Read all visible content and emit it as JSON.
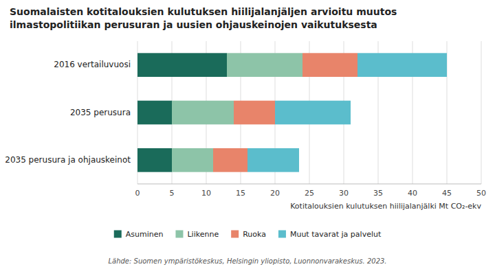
{
  "chart_data": {
    "type": "bar",
    "orientation": "horizontal",
    "stacked": true,
    "title": "Suomalaisten kotitalouksien kulutuksen hiilijalanjäljen arvioitu muutos",
    "subtitle": "ilmastopolitiikan perusuran ja uusien ohjauskeinojen vaikutuksesta",
    "categories": [
      "2016 vertailuvuosi",
      "2035 perusura",
      "2035 perusura ja ohjauskeinot"
    ],
    "series": [
      {
        "name": "Asuminen",
        "color": "#1a6b5a",
        "values": [
          13,
          5,
          5
        ]
      },
      {
        "name": "Liikenne",
        "color": "#8dc4a8",
        "values": [
          11,
          9,
          6
        ]
      },
      {
        "name": "Ruoka",
        "color": "#e8846a",
        "values": [
          8,
          6,
          5
        ]
      },
      {
        "name": "Muut tavarat ja palvelut",
        "color": "#5bbdcc",
        "values": [
          13,
          11,
          7.5
        ]
      }
    ],
    "x_label": "Kotitalouksien kulutuksen hiilijalanjälki Mt CO₂-ekv",
    "xlim": [
      0,
      50
    ],
    "xticks": [
      0,
      5,
      10,
      15,
      20,
      25,
      30,
      35,
      40,
      45,
      50
    ],
    "grid": true,
    "legend": "bottom",
    "annotations": [
      "Lähde: Suomen ympäristökeskus, Helsingin yliopisto, Luonnonvarakeskus. 2023."
    ]
  }
}
